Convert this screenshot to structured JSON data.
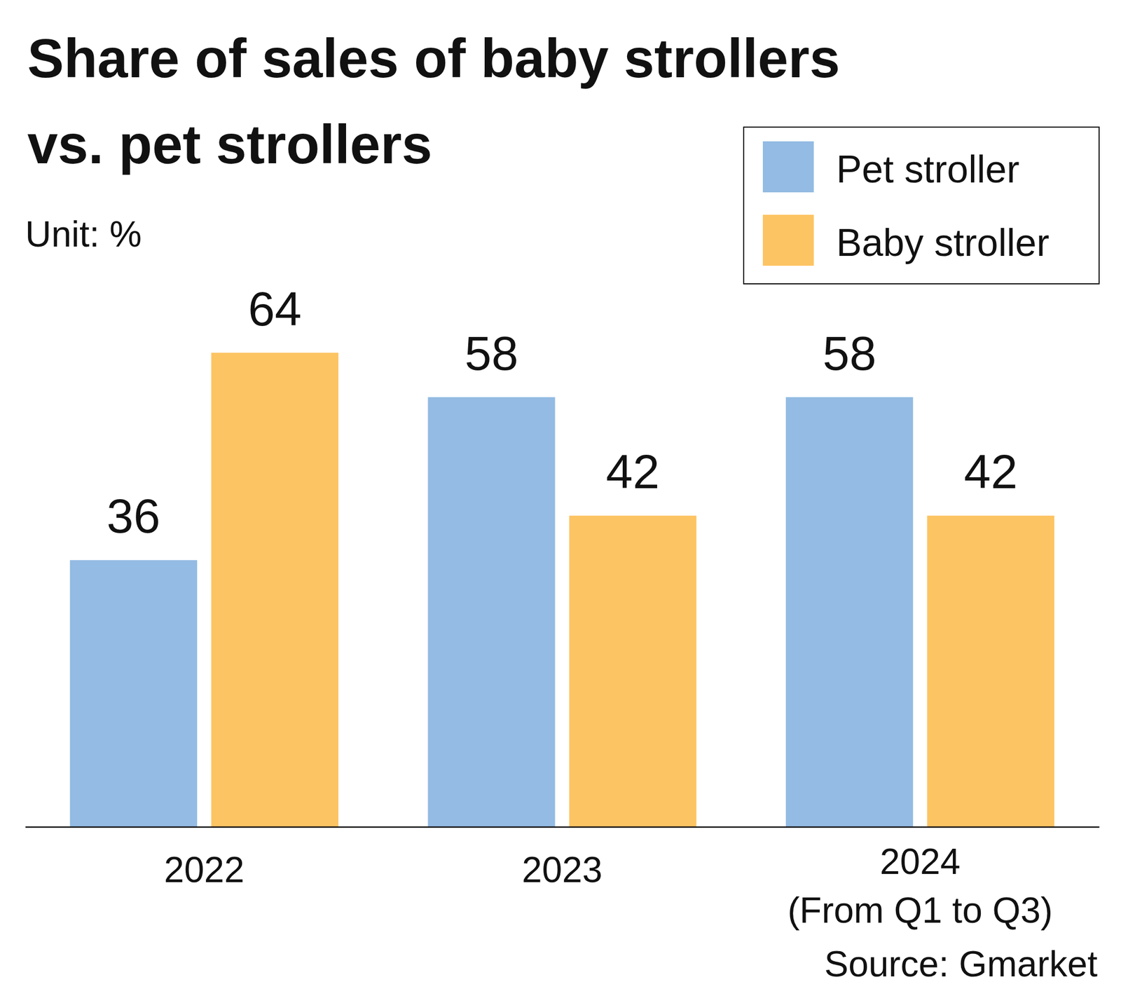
{
  "chart_data": {
    "type": "bar",
    "title": "Share of sales of baby strollers\nvs. pet strollers",
    "subtitle": "Unit: %",
    "source": "Source: Gmarket",
    "categories": [
      "2022",
      "2023",
      "2024\n(From Q1 to Q3)"
    ],
    "series": [
      {
        "name": "Pet stroller",
        "color": "#93bbe3",
        "values": [
          36,
          58,
          58
        ]
      },
      {
        "name": "Baby stroller",
        "color": "#fdc463",
        "values": [
          64,
          42,
          42
        ]
      }
    ],
    "ylim": [
      0,
      100
    ],
    "grid": false,
    "legend": "top-right",
    "data_labels": true,
    "tick_labels": "x"
  }
}
